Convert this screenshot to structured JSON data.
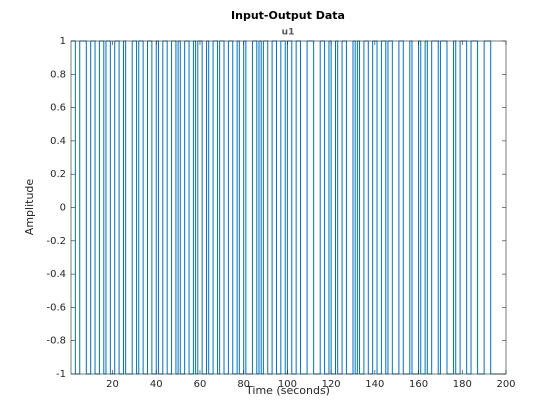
{
  "chart_data": {
    "type": "stairs",
    "title": "Input-Output Data",
    "subtitle": "u1",
    "x_label": "Time (seconds)",
    "y_label": "Amplitude",
    "x": [
      1,
      3,
      5,
      8,
      10,
      12,
      14,
      16,
      17,
      19,
      21,
      23,
      25,
      26,
      29,
      31,
      32,
      34,
      36,
      38,
      40,
      41,
      43,
      45,
      47,
      49,
      50,
      51,
      53,
      55,
      57,
      58,
      59,
      61,
      63,
      64,
      66,
      68,
      69,
      71,
      73,
      75,
      77,
      78,
      80,
      81,
      84,
      86,
      87,
      88,
      89,
      91,
      93,
      95,
      97,
      99,
      100,
      102,
      104,
      106,
      109,
      112,
      115,
      117,
      119,
      120,
      122,
      123,
      125,
      127,
      130,
      131,
      132,
      133,
      135,
      137,
      139,
      141,
      143,
      145,
      146,
      148,
      151,
      153,
      156,
      157,
      160,
      161,
      163,
      164,
      166,
      169,
      170,
      173,
      176,
      177,
      179,
      182,
      184,
      187,
      190,
      193,
      200
    ],
    "series": [
      {
        "name": "u1",
        "color": "#0072bd",
        "values": [
          1,
          -1,
          1,
          -1,
          1,
          -1,
          1,
          -1,
          1,
          -1,
          1,
          -1,
          1,
          -1,
          1,
          -1,
          1,
          -1,
          1,
          -1,
          1,
          -1,
          1,
          -1,
          1,
          -1,
          1,
          -1,
          1,
          -1,
          1,
          -1,
          1,
          -1,
          1,
          -1,
          1,
          -1,
          1,
          -1,
          1,
          -1,
          1,
          -1,
          1,
          -1,
          1,
          -1,
          1,
          -1,
          1,
          -1,
          1,
          -1,
          1,
          -1,
          1,
          -1,
          1,
          -1,
          1,
          -1,
          1,
          -1,
          1,
          -1,
          1,
          -1,
          1,
          -1,
          1,
          -1,
          1,
          -1,
          1,
          -1,
          1,
          -1,
          1,
          -1,
          1,
          -1,
          1,
          -1,
          1,
          -1,
          1,
          -1,
          1,
          -1,
          1,
          -1,
          1,
          -1,
          1,
          -1,
          1,
          -1,
          1,
          -1,
          1,
          -1,
          -1
        ]
      }
    ],
    "xlim": [
      1,
      200
    ],
    "xticks": [
      20,
      40,
      60,
      80,
      100,
      120,
      140,
      160,
      180,
      200
    ],
    "ylim": [
      -1,
      1
    ],
    "yticks": [
      -1,
      -0.8,
      -0.6,
      -0.4,
      -0.2,
      0,
      0.2,
      0.4,
      0.6,
      0.8,
      1
    ],
    "grid": false
  }
}
